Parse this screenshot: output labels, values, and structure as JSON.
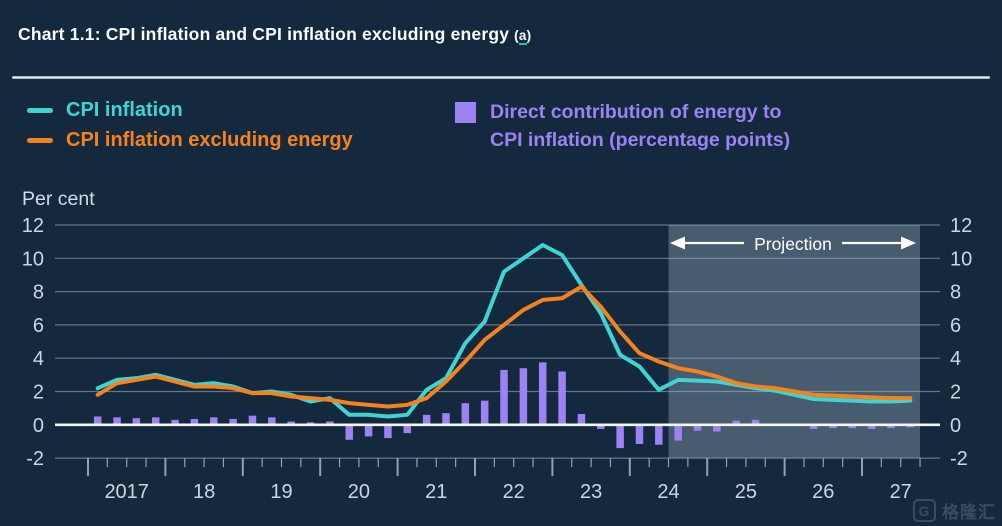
{
  "page": {
    "title": "Chart 1.1: CPI inflation and CPI inflation excluding energy",
    "footnote_prefix": "(",
    "footnote_letter": "a",
    "footnote_suffix": ")",
    "watermark_logo_letter": "G",
    "watermark": "格隆汇"
  },
  "legend": {
    "items": [
      {
        "label": "CPI inflation",
        "color": "#3fd4d4",
        "marker": "line"
      },
      {
        "label": "CPI inflation excluding energy",
        "color": "#f5831d",
        "marker": "line"
      },
      {
        "label_line1": "Direct contribution of energy to",
        "label_line2": "CPI inflation (percentage points)",
        "color": "#9c82f2",
        "marker": "square"
      }
    ]
  },
  "chart_data": {
    "type": "line+bar",
    "title": "Chart 1.1: CPI inflation and CPI inflation excluding energy (a)",
    "unit_label": "Per cent",
    "projection_label": "Projection",
    "projection_start": "2024 Q3",
    "frequency": "quarterly",
    "ylim": [
      -2,
      12
    ],
    "y_ticks": [
      12,
      10,
      8,
      6,
      4,
      2,
      0,
      -2
    ],
    "x_tick_labels": [
      "2017",
      "18",
      "19",
      "20",
      "21",
      "22",
      "23",
      "24",
      "25",
      "26",
      "27"
    ],
    "categories": [
      "2017 Q1",
      "2017 Q2",
      "2017 Q3",
      "2017 Q4",
      "2018 Q1",
      "2018 Q2",
      "2018 Q3",
      "2018 Q4",
      "2019 Q1",
      "2019 Q2",
      "2019 Q3",
      "2019 Q4",
      "2020 Q1",
      "2020 Q2",
      "2020 Q3",
      "2020 Q4",
      "2021 Q1",
      "2021 Q2",
      "2021 Q3",
      "2021 Q4",
      "2022 Q1",
      "2022 Q2",
      "2022 Q3",
      "2022 Q4",
      "2023 Q1",
      "2023 Q2",
      "2023 Q3",
      "2023 Q4",
      "2024 Q1",
      "2024 Q2",
      "2024 Q3",
      "2024 Q4",
      "2025 Q1",
      "2025 Q2",
      "2025 Q3",
      "2025 Q4",
      "2026 Q1",
      "2026 Q2",
      "2026 Q3",
      "2026 Q4",
      "2027 Q1",
      "2027 Q2",
      "2027 Q3"
    ],
    "series": [
      {
        "name": "CPI inflation",
        "type": "line",
        "color": "#3fd4d4",
        "values": [
          2.2,
          2.7,
          2.8,
          3.0,
          2.7,
          2.4,
          2.5,
          2.3,
          1.9,
          2.0,
          1.8,
          1.4,
          1.6,
          0.6,
          0.6,
          0.5,
          0.6,
          2.1,
          2.8,
          4.9,
          6.2,
          9.2,
          10.0,
          10.8,
          10.2,
          8.4,
          6.7,
          4.2,
          3.5,
          2.1,
          2.7,
          2.65,
          2.6,
          2.4,
          2.2,
          2.05,
          1.8,
          1.55,
          1.5,
          1.45,
          1.4,
          1.4,
          1.45
        ]
      },
      {
        "name": "CPI inflation excluding energy",
        "type": "line",
        "color": "#f5831d",
        "values": [
          1.8,
          2.5,
          2.7,
          2.9,
          2.6,
          2.3,
          2.3,
          2.2,
          1.9,
          1.9,
          1.7,
          1.6,
          1.5,
          1.3,
          1.2,
          1.1,
          1.2,
          1.6,
          2.6,
          3.8,
          5.1,
          6.0,
          6.9,
          7.5,
          7.6,
          8.3,
          7.1,
          5.6,
          4.3,
          3.8,
          3.4,
          3.2,
          2.9,
          2.5,
          2.3,
          2.2,
          2.0,
          1.8,
          1.75,
          1.7,
          1.65,
          1.6,
          1.6
        ]
      },
      {
        "name": "Direct contribution of energy to CPI inflation (percentage points)",
        "type": "bar",
        "color": "#9c82f2",
        "values": [
          0.5,
          0.45,
          0.4,
          0.45,
          0.3,
          0.35,
          0.45,
          0.35,
          0.55,
          0.45,
          0.2,
          0.15,
          0.2,
          -0.9,
          -0.7,
          -0.8,
          -0.5,
          0.6,
          0.7,
          1.3,
          1.45,
          3.3,
          3.4,
          3.75,
          3.2,
          0.65,
          -0.25,
          -1.4,
          -1.15,
          -1.2,
          -0.95,
          -0.35,
          -0.4,
          0.25,
          0.3,
          0.05,
          -0.05,
          -0.25,
          -0.2,
          -0.2,
          -0.25,
          -0.2,
          -0.15
        ]
      }
    ],
    "legend_position": "top",
    "grid": true,
    "colors": {
      "background": "#14293e",
      "zero_line": "#f4f8fa",
      "gridline": "rgba(168,183,198,0.55)",
      "tick_label": "#ccd6df",
      "projection_shade": "rgba(197,212,226,0.30)",
      "projection_text": "#ffffff"
    }
  }
}
